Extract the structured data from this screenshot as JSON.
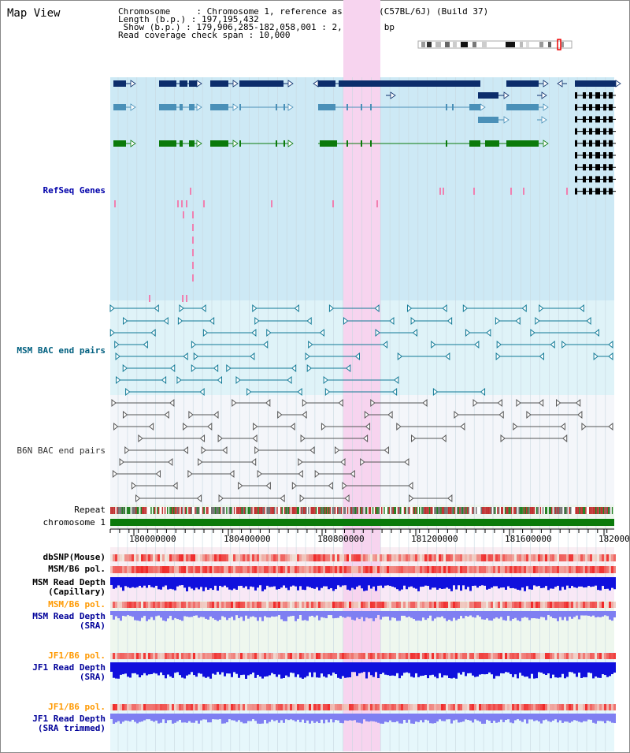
{
  "app": {
    "title": "Map View"
  },
  "header": {
    "lines": [
      "Chromosome     : Chromosome 1, reference assembly (C57BL/6J) (Build 37)",
      "Length (b.p.) : 197,195,432",
      " Show (b.p.) : 179,906,285-182,058,001 : 2,151,717 bp",
      "Read coverage check span : 10,000"
    ]
  },
  "tracks": {
    "refseq": {
      "label": "RefSeq Genes",
      "color": "#0000aa"
    },
    "msm_bac": {
      "label": "MSM BAC end pairs",
      "color": "#005f7f"
    },
    "b6n_bac": {
      "label": "B6N BAC end pairs",
      "color": "#333333"
    },
    "repeat": {
      "label": "Repeat"
    },
    "chromosome": {
      "label": "chromosome 1"
    },
    "dbsnp": {
      "label": "dbSNP(Mouse)",
      "color": "#000000"
    },
    "msm_b6_pol_1": {
      "label": "MSM/B6 pol.",
      "color": "#000000"
    },
    "msm_depth_cap": {
      "label": "MSM Read Depth\n(Capillary)",
      "color": "#000000"
    },
    "msm_b6_pol_2": {
      "label": "MSM/B6 pol.",
      "color": "#ff9900"
    },
    "msm_depth_sra": {
      "label": "MSM Read Depth\n(SRA)",
      "color": "#000099"
    },
    "jf1_b6_pol_1": {
      "label": "JF1/B6 pol.",
      "color": "#ff9900"
    },
    "jf1_depth_sra": {
      "label": "JF1 Read Depth\n(SRA)",
      "color": "#000099"
    },
    "jf1_b6_pol_2": {
      "label": "JF1/B6 pol.",
      "color": "#ff9900"
    },
    "jf1_depth_trim": {
      "label": "JF1 Read Depth\n(SRA trimmed)",
      "color": "#000099"
    }
  },
  "axis": {
    "ticks": [
      "180000000",
      "180400000",
      "180800000",
      "181200000",
      "181600000",
      "182000000"
    ]
  },
  "colors": {
    "highlight": "#f7d4ef",
    "refseq_bg": "#cde9f5",
    "gene_dark": "#0c2d6b",
    "gene_mid": "#4a90b8",
    "gene_green": "#0b7a0b",
    "chromosome_bar": "#0a7a0a",
    "depth_blue": "#1010dd",
    "depth_light": "#7f7ff2"
  }
}
